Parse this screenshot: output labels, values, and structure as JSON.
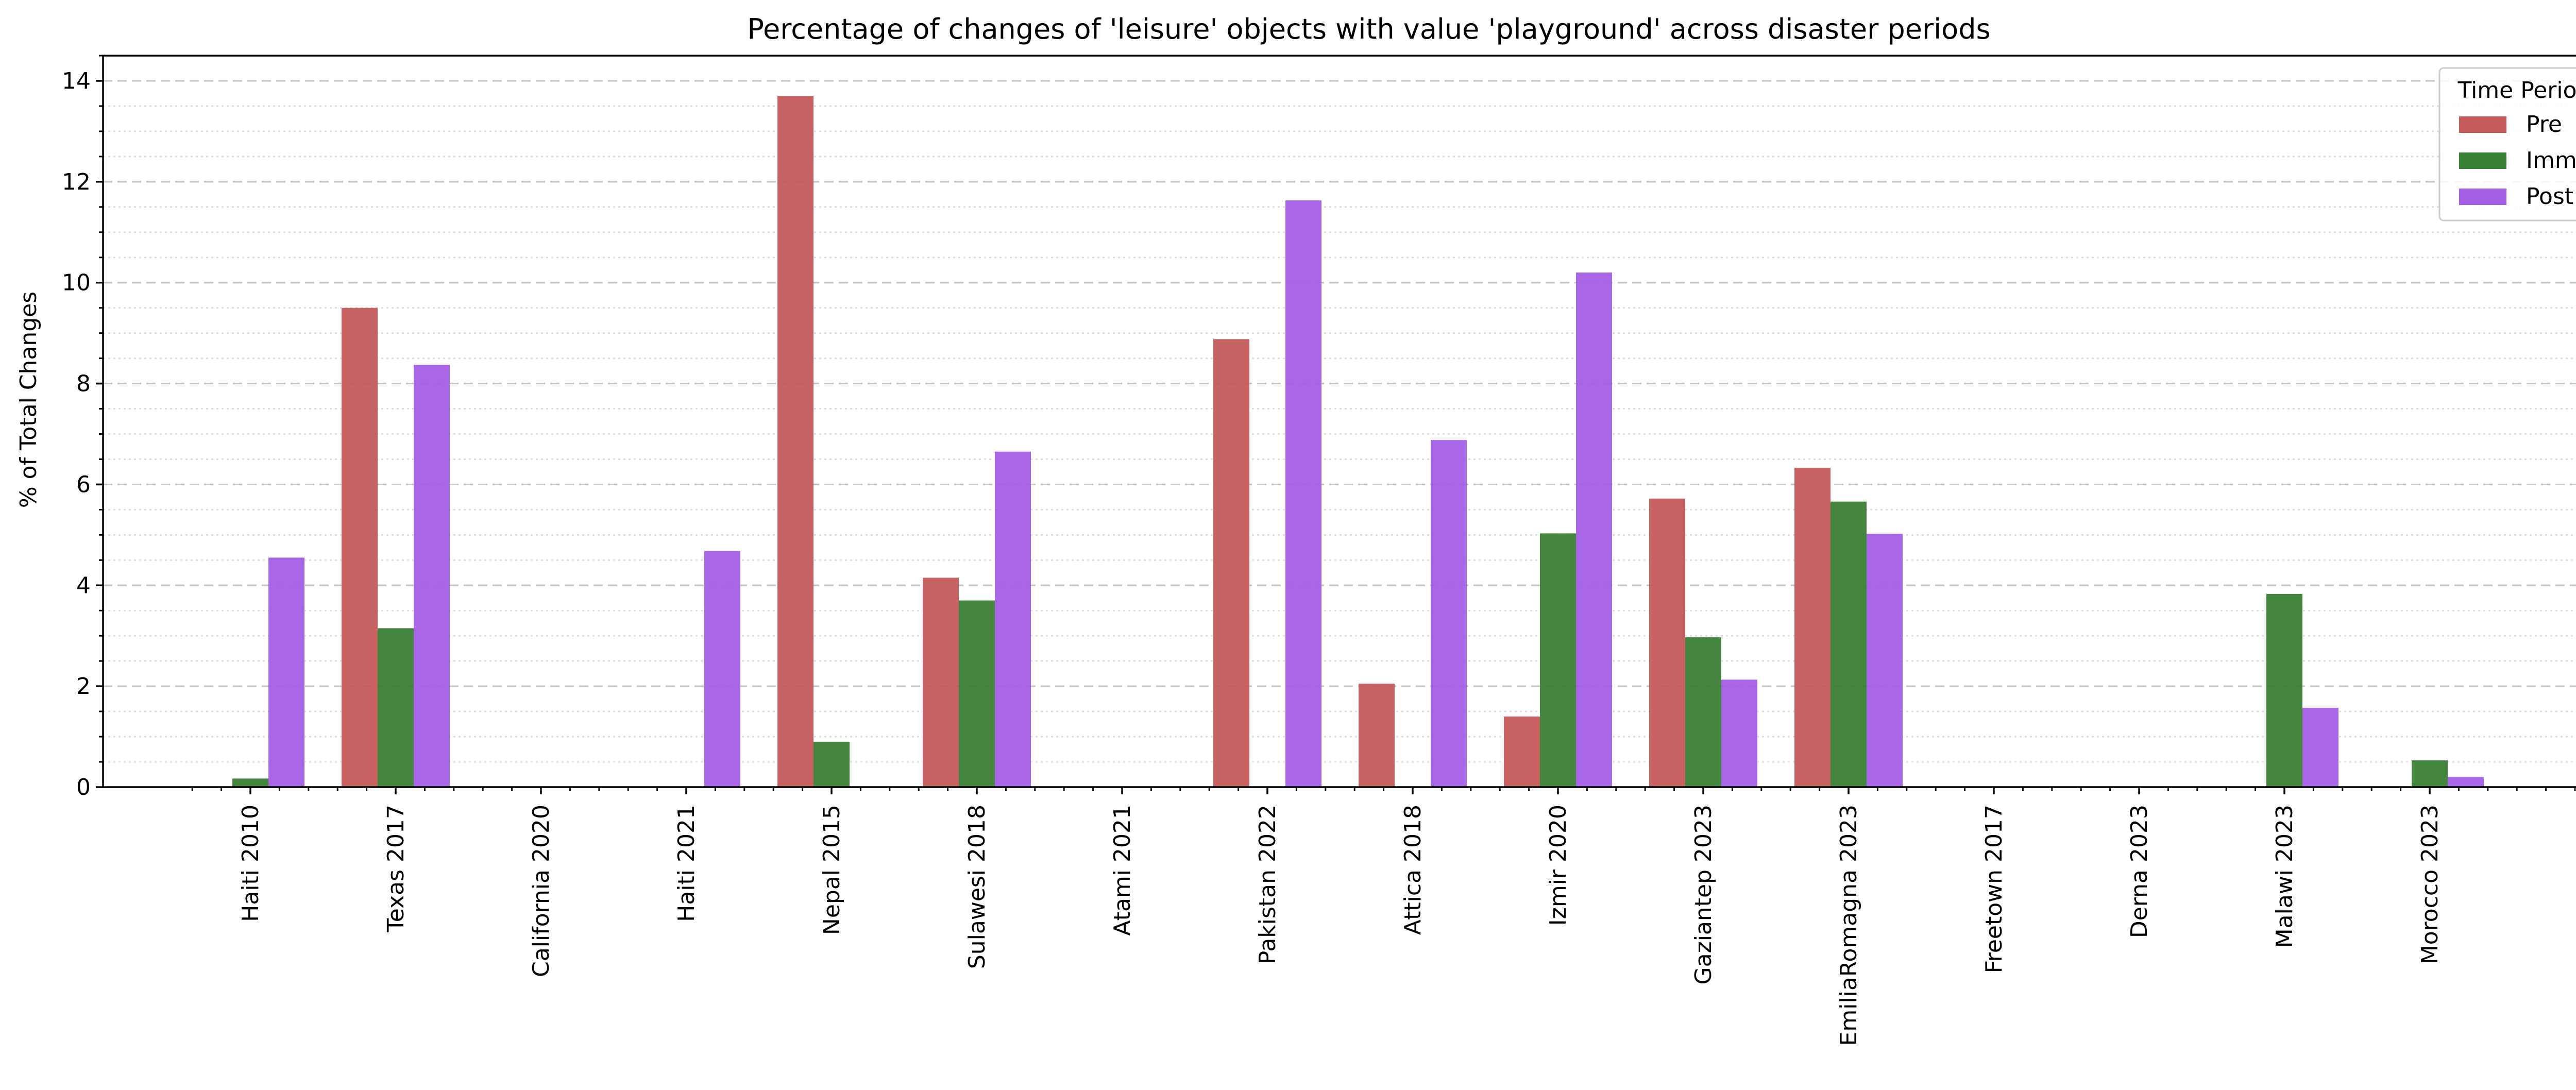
{
  "chart_data": {
    "type": "bar",
    "title": "Percentage of changes of 'leisure' objects with value 'playground' across disaster periods",
    "xlabel": "",
    "ylabel": "% of Total Changes",
    "ylim": [
      0,
      14.5
    ],
    "yticks": [
      0,
      2,
      4,
      6,
      8,
      10,
      12,
      14
    ],
    "y_minor_step": 0.5,
    "grid": true,
    "legend": {
      "title": "Time Period",
      "placement": "top-right"
    },
    "categories": [
      "Haiti 2010",
      "Texas 2017",
      "California 2020",
      "Haiti 2021",
      "Nepal 2015",
      "Sulawesi 2018",
      "Atami 2021",
      "Pakistan 2022",
      "Attica 2018",
      "Izmir 2020",
      "Gaziantep 2023",
      "EmiliaRomagna 2023",
      "Freetown 2017",
      "Derna 2023",
      "Malawi 2023",
      "Morocco 2023"
    ],
    "series": [
      {
        "name": "Pre",
        "color": "#c45a5a",
        "values": [
          0,
          9.5,
          0,
          0,
          13.7,
          4.15,
          0,
          8.88,
          2.05,
          1.4,
          5.72,
          6.33,
          0,
          0,
          0,
          0
        ]
      },
      {
        "name": "Imm",
        "color": "#3a8035",
        "values": [
          0.17,
          3.15,
          0,
          0,
          0.9,
          3.7,
          0,
          0,
          0,
          5.03,
          2.97,
          5.66,
          0,
          0,
          3.83,
          0.53
        ]
      },
      {
        "name": "Post",
        "color": "#a45ee5",
        "values": [
          4.55,
          8.37,
          0,
          4.68,
          0,
          6.65,
          0,
          11.63,
          6.88,
          10.2,
          2.13,
          5.02,
          0,
          0,
          1.57,
          0.2
        ]
      }
    ]
  }
}
